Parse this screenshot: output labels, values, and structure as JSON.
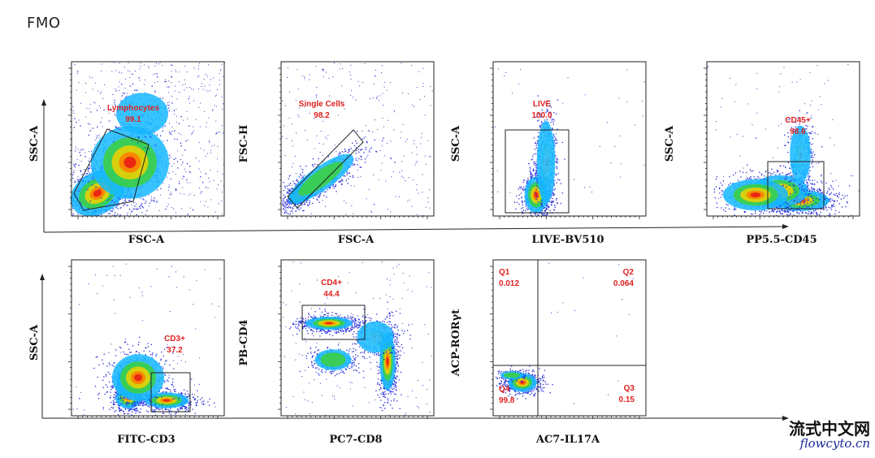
{
  "page": {
    "title": "FMO"
  },
  "watermark": {
    "cn": "流式中文网",
    "en": "flowcyto.cn"
  },
  "colors": {
    "gate_label": "#e02020",
    "gate_line": "#222222",
    "axes": "#222222"
  },
  "chart_data": [
    {
      "type": "scatter",
      "xlabel": "FSC-A",
      "ylabel": "SSC-A",
      "gates": [
        {
          "name": "Lymphocytes",
          "percent": "99.1",
          "shape": "polygon"
        }
      ]
    },
    {
      "type": "scatter",
      "xlabel": "FSC-A",
      "ylabel": "FSC-H",
      "gates": [
        {
          "name": "Single Cells",
          "percent": "98.2",
          "shape": "polygon"
        }
      ]
    },
    {
      "type": "scatter",
      "xlabel": "LIVE-BV510",
      "ylabel": "SSC-A",
      "gates": [
        {
          "name": "LIVE",
          "percent": "100.0",
          "shape": "rectangle"
        }
      ]
    },
    {
      "type": "scatter",
      "xlabel": "PP5.5-CD45",
      "ylabel": "SSC-A",
      "gates": [
        {
          "name": "CD45+",
          "percent": "98.6",
          "shape": "rectangle"
        }
      ]
    },
    {
      "type": "scatter",
      "xlabel": "FITC-CD3",
      "ylabel": "SSC-A",
      "gates": [
        {
          "name": "CD3+",
          "percent": "37.2",
          "shape": "rectangle"
        }
      ]
    },
    {
      "type": "scatter",
      "xlabel": "PC7-CD8",
      "ylabel": "PB-CD4",
      "gates": [
        {
          "name": "CD4+",
          "percent": "44.4",
          "shape": "rectangle"
        }
      ]
    },
    {
      "type": "scatter",
      "xlabel": "AC7-IL17A",
      "ylabel": "ACP-RORγt",
      "gates": [
        {
          "name": "Q1",
          "percent": "0.012",
          "shape": "quadrant"
        },
        {
          "name": "Q2",
          "percent": "0.064",
          "shape": "quadrant"
        },
        {
          "name": "Q3",
          "percent": "0.15",
          "shape": "quadrant"
        },
        {
          "name": "Q4",
          "percent": "99.8",
          "shape": "quadrant"
        }
      ]
    }
  ]
}
